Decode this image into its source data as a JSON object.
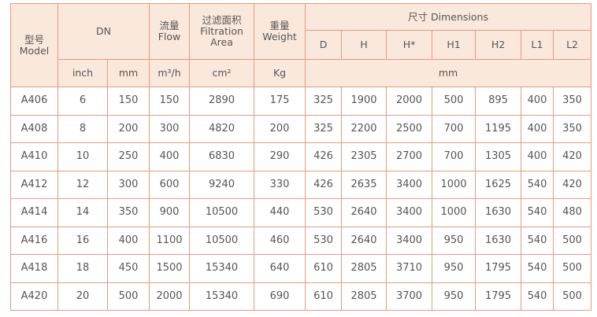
{
  "header": {
    "model": {
      "zh": "型号",
      "en": "Model"
    },
    "dn": "DN",
    "flow": {
      "zh": "流量",
      "en": "Flow"
    },
    "area": {
      "zh": "过滤面积",
      "en": "Filtration Area"
    },
    "weight": {
      "zh": "重量",
      "en": "Weight"
    },
    "dimensions": "尺寸 Dimensions",
    "dimension_columns": [
      "D",
      "H",
      "H*",
      "H1",
      "H2",
      "L1",
      "L2"
    ],
    "units": [
      "inch",
      "mm",
      "m³/h",
      "cm²",
      "Kg",
      "mm"
    ]
  },
  "table": {
    "rows": [
      [
        "A406",
        6,
        150,
        150,
        2890,
        175,
        325,
        1900,
        2000,
        500,
        895,
        400,
        350
      ],
      [
        "A408",
        8,
        200,
        300,
        4820,
        200,
        325,
        2200,
        2500,
        700,
        1195,
        400,
        350
      ],
      [
        "A410",
        10,
        250,
        400,
        6830,
        290,
        426,
        2305,
        2700,
        700,
        1305,
        400,
        420
      ],
      [
        "A412",
        12,
        300,
        600,
        9240,
        330,
        426,
        2635,
        3400,
        1000,
        1625,
        540,
        420
      ],
      [
        "A414",
        14,
        350,
        900,
        10500,
        440,
        530,
        2640,
        3400,
        1000,
        1630,
        540,
        480
      ],
      [
        "A416",
        16,
        400,
        1100,
        10500,
        460,
        530,
        2640,
        3400,
        950,
        1630,
        540,
        500
      ],
      [
        "A418",
        18,
        450,
        1500,
        15340,
        640,
        610,
        2805,
        3710,
        950,
        1795,
        540,
        500
      ],
      [
        "A420",
        20,
        500,
        2000,
        15340,
        690,
        610,
        2805,
        3700,
        950,
        1795,
        540,
        500
      ]
    ]
  }
}
